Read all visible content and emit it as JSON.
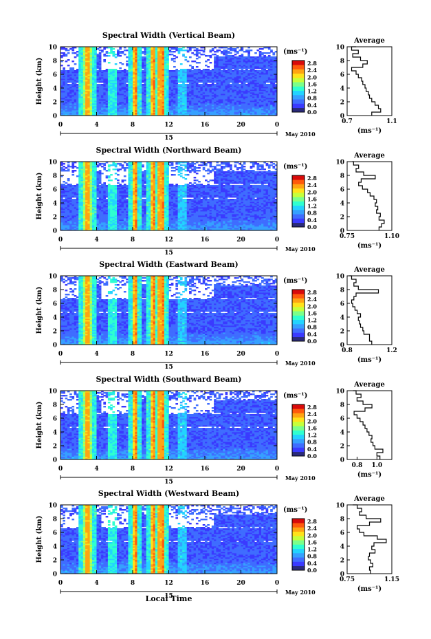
{
  "figure": {
    "xlabel": "Local Time",
    "ylabel": "Height (km)",
    "date_label": "May 2010",
    "day_label": "15",
    "unit_label": "(ms⁻¹)",
    "avg_title": "Average",
    "avg_xlabel": "(ms⁻¹)",
    "time_ticks": [
      "0",
      "4",
      "8",
      "12",
      "16",
      "20",
      "0"
    ],
    "height_ticks": [
      "0",
      "2",
      "4",
      "6",
      "8",
      "10"
    ],
    "colorbar_ticks": [
      "0.0",
      "0.4",
      "0.8",
      "1.2",
      "1.6",
      "2.0",
      "2.4",
      "2.8"
    ],
    "colormap": [
      "#2a2a7a",
      "#3a3aff",
      "#3f6dff",
      "#36a0ff",
      "#23d3ff",
      "#2fffd0",
      "#7bff8a",
      "#c6ff3b",
      "#ffe21a",
      "#ffa412",
      "#ff5a0c",
      "#d80a0a"
    ]
  },
  "chart_data": [
    {
      "type": "heatmap",
      "title": "Spectral Width (Vertical Beam)",
      "x_range": [
        0,
        24
      ],
      "y_range": [
        0,
        10
      ],
      "colorbar_range": [
        0.0,
        2.8
      ],
      "high_width_bands_hours": [
        3.0,
        8.3,
        10.3,
        11.0,
        11.3
      ],
      "average": {
        "xlim": [
          0.7,
          1.1
        ],
        "xticks": [
          "0.7",
          "1.1"
        ],
        "height": [
          0,
          0.5,
          1,
          1.5,
          2,
          2.5,
          3,
          3.5,
          4,
          4.5,
          5,
          5.5,
          6,
          6.5,
          7,
          7.5,
          8,
          8.5,
          9,
          9.5,
          10
        ],
        "value": [
          0.92,
          1.0,
          0.98,
          0.95,
          0.92,
          0.9,
          0.89,
          0.87,
          0.86,
          0.84,
          0.83,
          0.8,
          0.78,
          0.74,
          0.84,
          0.88,
          0.82,
          0.75,
          0.8,
          0.74,
          0.78
        ]
      }
    },
    {
      "type": "heatmap",
      "title": "Spectral Width (Northward Beam)",
      "x_range": [
        0,
        24
      ],
      "y_range": [
        0,
        10
      ],
      "colorbar_range": [
        0.0,
        2.8
      ],
      "high_width_bands_hours": [
        3.0,
        8.3,
        10.3,
        11.0,
        11.3
      ],
      "average": {
        "xlim": [
          0.75,
          1.1
        ],
        "xticks": [
          "0.75",
          "1.10"
        ],
        "height": [
          0,
          0.5,
          1,
          1.5,
          2,
          2.5,
          3,
          3.5,
          4,
          4.5,
          5,
          5.5,
          6,
          6.5,
          7,
          7.5,
          8,
          8.5,
          9,
          9.5,
          10
        ],
        "value": [
          1.0,
          1.02,
          1.04,
          1.0,
          1.01,
          0.98,
          0.99,
          0.97,
          0.98,
          0.96,
          0.93,
          0.91,
          0.87,
          0.84,
          0.86,
          0.97,
          0.88,
          0.82,
          0.84,
          0.8,
          0.79
        ]
      }
    },
    {
      "type": "heatmap",
      "title": "Spectral Width (Eastward Beam)",
      "x_range": [
        0,
        24
      ],
      "y_range": [
        0,
        10
      ],
      "colorbar_range": [
        0.0,
        2.8
      ],
      "high_width_bands_hours": [
        3.0,
        8.3,
        10.3,
        11.0,
        11.3
      ],
      "average": {
        "xlim": [
          0.8,
          1.2
        ],
        "xticks": [
          "0.8",
          "1.2"
        ],
        "height": [
          0,
          0.5,
          1,
          1.5,
          2,
          2.5,
          3,
          3.5,
          4,
          4.5,
          5,
          5.5,
          6,
          6.5,
          7,
          7.5,
          8,
          8.5,
          9,
          9.5,
          10
        ],
        "value": [
          1.02,
          1.0,
          1.0,
          0.95,
          0.94,
          0.92,
          0.91,
          0.9,
          0.92,
          0.89,
          0.87,
          0.85,
          0.84,
          0.86,
          0.88,
          1.08,
          0.9,
          0.86,
          0.88,
          0.84,
          0.82
        ]
      }
    },
    {
      "type": "heatmap",
      "title": "Spectral Width (Southward Beam)",
      "x_range": [
        0,
        24
      ],
      "y_range": [
        0,
        10
      ],
      "colorbar_range": [
        0.0,
        2.8
      ],
      "high_width_bands_hours": [
        3.0,
        8.3,
        10.3,
        11.0,
        11.3
      ],
      "average": {
        "xlim": [
          0.7,
          1.15
        ],
        "xticks": [
          "0.8",
          "1.0"
        ],
        "height": [
          0,
          0.5,
          1,
          1.5,
          2,
          2.5,
          3,
          3.5,
          4,
          4.5,
          5,
          5.5,
          6,
          6.5,
          7,
          7.5,
          8,
          8.5,
          9,
          9.5,
          10
        ],
        "value": [
          1.03,
          1.0,
          1.06,
          0.98,
          0.96,
          0.94,
          0.95,
          0.92,
          0.9,
          0.88,
          0.86,
          0.83,
          0.8,
          0.77,
          0.88,
          0.95,
          0.86,
          0.8,
          0.84,
          0.79,
          0.76
        ]
      }
    },
    {
      "type": "heatmap",
      "title": "Spectral Width (Westward Beam)",
      "x_range": [
        0,
        24
      ],
      "y_range": [
        0,
        10
      ],
      "colorbar_range": [
        0.0,
        2.8
      ],
      "high_width_bands_hours": [
        3.0,
        8.3,
        10.3,
        11.0,
        11.3
      ],
      "average": {
        "xlim": [
          0.75,
          1.15
        ],
        "xticks": [
          "0.75",
          "1.15"
        ],
        "height": [
          0,
          0.5,
          1,
          1.5,
          2,
          2.5,
          3,
          3.5,
          4,
          4.5,
          5,
          5.5,
          6,
          6.5,
          7,
          7.5,
          8,
          8.5,
          9,
          9.5,
          10
        ],
        "value": [
          0.96,
          0.95,
          0.98,
          0.96,
          0.94,
          0.95,
          1.0,
          0.97,
          0.99,
          1.1,
          1.02,
          0.9,
          0.86,
          0.84,
          0.95,
          1.05,
          0.92,
          0.86,
          0.88,
          0.84,
          0.8
        ]
      }
    }
  ]
}
